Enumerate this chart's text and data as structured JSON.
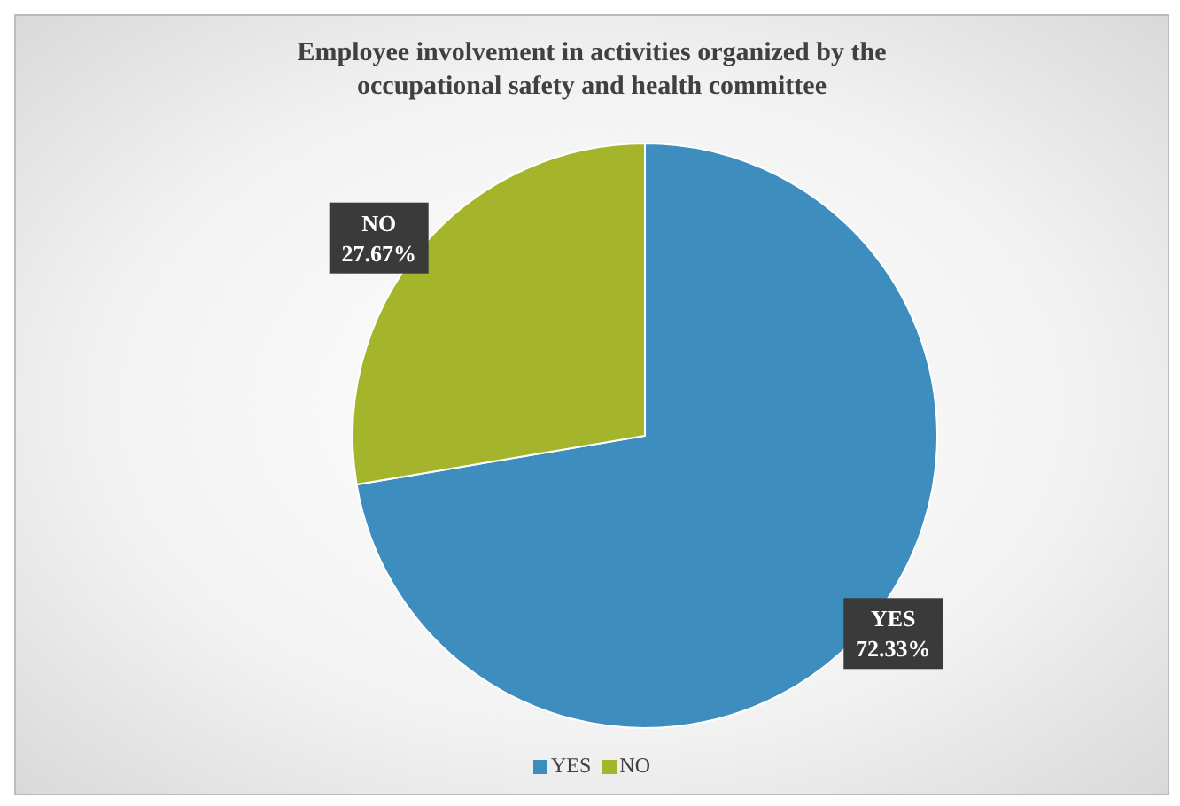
{
  "chart_data": {
    "type": "pie",
    "title": "Employee involvement in activities organized by the occupational safety and health committee",
    "categories": [
      "YES",
      "NO"
    ],
    "values": [
      72.33,
      27.67
    ],
    "colors": [
      "#3d8dbf",
      "#a5b52b"
    ],
    "value_labels": [
      "72.33%",
      "27.67%"
    ],
    "legend": "bottom"
  }
}
